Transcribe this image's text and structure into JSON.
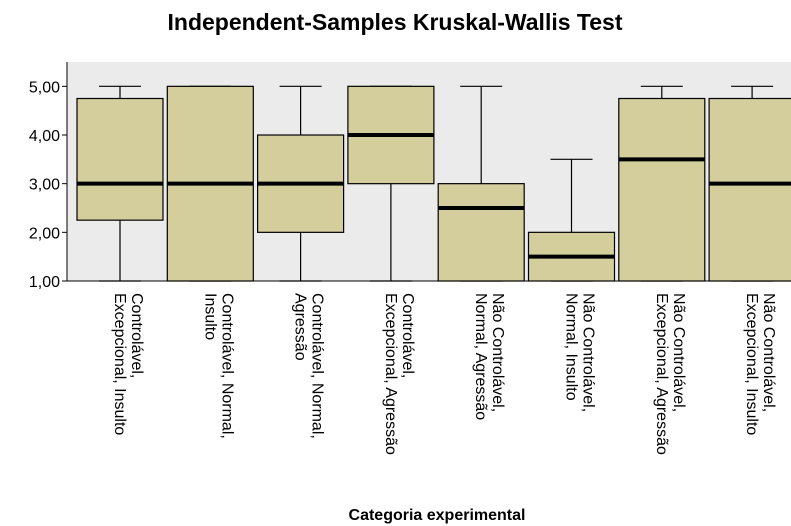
{
  "chart_data": {
    "type": "boxplot",
    "title": "Independent-Samples Kruskal-Wallis Test",
    "x_label": "Categoria experimental",
    "categories": [
      [
        "Controlável,",
        "Excepcional, Insulto"
      ],
      [
        "Controlável, Normal,",
        "Insulto"
      ],
      [
        "Controlável, Normal,",
        "Agressão"
      ],
      [
        "Controlável,",
        "Excepcional, Agressão"
      ],
      [
        "Não Controlável,",
        "Normal, Agressão"
      ],
      [
        "Não Controlável,",
        "Normal, Insulto"
      ],
      [
        "Não Controlável,",
        "Excepcional, Agressão"
      ],
      [
        "Não Controlável,",
        "Excepcional, Insulto"
      ]
    ],
    "min": [
      1,
      1,
      1,
      1,
      1,
      1,
      1,
      1
    ],
    "q1": [
      2.25,
      1,
      2,
      3,
      1,
      1,
      1,
      1
    ],
    "median": [
      3,
      3,
      3,
      4,
      2.5,
      1.5,
      3.5,
      3
    ],
    "q3": [
      4.75,
      5,
      4,
      5,
      3,
      2,
      4.75,
      4.75
    ],
    "max": [
      5,
      5,
      5,
      5,
      5,
      3.5,
      5,
      5
    ],
    "color": "#d3ce9b",
    "ylim": [
      1,
      5.5
    ],
    "yticks": [
      {
        "value": 1,
        "label": "1,00"
      },
      {
        "value": 2,
        "label": "2,00"
      },
      {
        "value": 3,
        "label": "3,00"
      },
      {
        "value": 4,
        "label": "4,00"
      },
      {
        "value": 5,
        "label": "5,00"
      }
    ]
  }
}
